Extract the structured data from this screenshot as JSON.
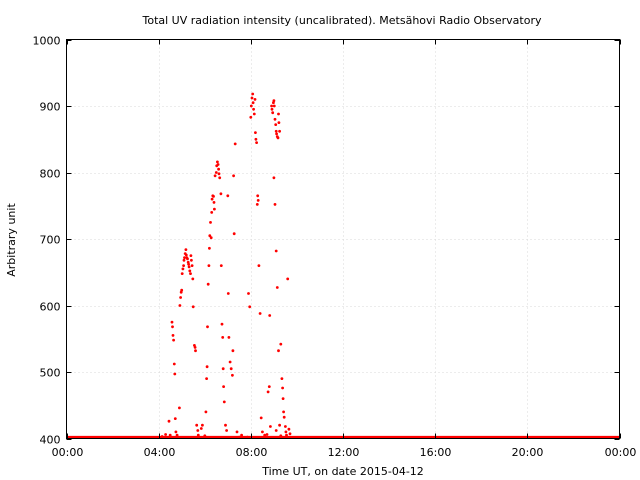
{
  "chart_data": {
    "type": "scatter",
    "title": "Total UV radiation intensity (uncalibrated). Metsähovi Radio Observatory",
    "xlabel": "Time UT, on date 2015-04-12",
    "ylabel": "Arbitrary unit",
    "xlim": [
      0,
      24
    ],
    "ylim": [
      400,
      1000
    ],
    "x_ticks": [
      {
        "value": 0,
        "label": "00:00"
      },
      {
        "value": 4,
        "label": "04:00"
      },
      {
        "value": 8,
        "label": "08:00"
      },
      {
        "value": 12,
        "label": "12:00"
      },
      {
        "value": 16,
        "label": "16:00"
      },
      {
        "value": 20,
        "label": "20:00"
      },
      {
        "value": 24,
        "label": "00:00"
      }
    ],
    "y_ticks": [
      {
        "value": 400,
        "label": "400"
      },
      {
        "value": 500,
        "label": "500"
      },
      {
        "value": 600,
        "label": "600"
      },
      {
        "value": 700,
        "label": "700"
      },
      {
        "value": 800,
        "label": "800"
      },
      {
        "value": 900,
        "label": "900"
      },
      {
        "value": 1000,
        "label": "1000"
      }
    ],
    "grid": true,
    "series": [
      {
        "color": "#ff0000",
        "baseline": {
          "y": 401,
          "x_start": 0,
          "x_end": 24
        },
        "points": [
          [
            4.15,
            403
          ],
          [
            4.3,
            406
          ],
          [
            4.45,
            426
          ],
          [
            4.5,
            405
          ],
          [
            4.58,
            575
          ],
          [
            4.6,
            568
          ],
          [
            4.62,
            555
          ],
          [
            4.65,
            548
          ],
          [
            4.68,
            512
          ],
          [
            4.7,
            497
          ],
          [
            4.72,
            430
          ],
          [
            4.75,
            410
          ],
          [
            4.8,
            405
          ],
          [
            4.9,
            446
          ],
          [
            4.92,
            600
          ],
          [
            4.95,
            612
          ],
          [
            4.98,
            620
          ],
          [
            5.0,
            623
          ],
          [
            5.02,
            648
          ],
          [
            5.05,
            655
          ],
          [
            5.08,
            660
          ],
          [
            5.1,
            668
          ],
          [
            5.12,
            672
          ],
          [
            5.15,
            678
          ],
          [
            5.18,
            684
          ],
          [
            5.2,
            676
          ],
          [
            5.22,
            672
          ],
          [
            5.25,
            670
          ],
          [
            5.28,
            665
          ],
          [
            5.3,
            662
          ],
          [
            5.32,
            658
          ],
          [
            5.35,
            652
          ],
          [
            5.38,
            648
          ],
          [
            5.4,
            675
          ],
          [
            5.42,
            668
          ],
          [
            5.45,
            660
          ],
          [
            5.48,
            640
          ],
          [
            5.5,
            598
          ],
          [
            5.55,
            540
          ],
          [
            5.58,
            537
          ],
          [
            5.6,
            532
          ],
          [
            5.65,
            420
          ],
          [
            5.7,
            412
          ],
          [
            5.72,
            405
          ],
          [
            5.75,
            402
          ],
          [
            5.85,
            415
          ],
          [
            5.9,
            420
          ],
          [
            6.0,
            404
          ],
          [
            6.05,
            440
          ],
          [
            6.08,
            490
          ],
          [
            6.1,
            508
          ],
          [
            6.12,
            568
          ],
          [
            6.15,
            632
          ],
          [
            6.18,
            660
          ],
          [
            6.2,
            686
          ],
          [
            6.22,
            705
          ],
          [
            6.25,
            725
          ],
          [
            6.28,
            702
          ],
          [
            6.3,
            740
          ],
          [
            6.32,
            760
          ],
          [
            6.35,
            765
          ],
          [
            6.38,
            764
          ],
          [
            6.4,
            755
          ],
          [
            6.42,
            745
          ],
          [
            6.45,
            795
          ],
          [
            6.5,
            800
          ],
          [
            6.52,
            810
          ],
          [
            6.55,
            816
          ],
          [
            6.58,
            812
          ],
          [
            6.6,
            805
          ],
          [
            6.62,
            798
          ],
          [
            6.65,
            792
          ],
          [
            6.7,
            768
          ],
          [
            6.72,
            660
          ],
          [
            6.75,
            572
          ],
          [
            6.78,
            552
          ],
          [
            6.8,
            505
          ],
          [
            6.82,
            478
          ],
          [
            6.85,
            455
          ],
          [
            6.9,
            420
          ],
          [
            6.95,
            412
          ],
          [
            7.0,
            765
          ],
          [
            7.02,
            618
          ],
          [
            7.05,
            552
          ],
          [
            7.1,
            515
          ],
          [
            7.15,
            505
          ],
          [
            7.2,
            495
          ],
          [
            7.22,
            532
          ],
          [
            7.25,
            795
          ],
          [
            7.28,
            708
          ],
          [
            7.32,
            843
          ],
          [
            7.4,
            410
          ],
          [
            7.5,
            402
          ],
          [
            7.6,
            405
          ],
          [
            7.85,
            402
          ],
          [
            7.9,
            618
          ],
          [
            7.95,
            598
          ],
          [
            8.0,
            883
          ],
          [
            8.02,
            900
          ],
          [
            8.05,
            912
          ],
          [
            8.08,
            918
          ],
          [
            8.1,
            905
          ],
          [
            8.12,
            895
          ],
          [
            8.15,
            888
          ],
          [
            8.18,
            910
          ],
          [
            8.2,
            860
          ],
          [
            8.22,
            850
          ],
          [
            8.25,
            845
          ],
          [
            8.28,
            752
          ],
          [
            8.3,
            765
          ],
          [
            8.32,
            758
          ],
          [
            8.35,
            660
          ],
          [
            8.4,
            588
          ],
          [
            8.45,
            431
          ],
          [
            8.5,
            410
          ],
          [
            8.6,
            405
          ],
          [
            8.7,
            406
          ],
          [
            8.75,
            470
          ],
          [
            8.8,
            478
          ],
          [
            8.82,
            585
          ],
          [
            8.85,
            418
          ],
          [
            8.9,
            900
          ],
          [
            8.92,
            895
          ],
          [
            8.95,
            890
          ],
          [
            8.98,
            905
          ],
          [
            9.0,
            908
          ],
          [
            9.02,
            900
          ],
          [
            9.05,
            880
          ],
          [
            9.08,
            872
          ],
          [
            9.1,
            862
          ],
          [
            9.12,
            858
          ],
          [
            9.15,
            854
          ],
          [
            9.18,
            852
          ],
          [
            9.2,
            888
          ],
          [
            9.22,
            875
          ],
          [
            9.25,
            862
          ],
          [
            9.0,
            792
          ],
          [
            9.05,
            752
          ],
          [
            9.1,
            682
          ],
          [
            9.15,
            627
          ],
          [
            9.2,
            532
          ],
          [
            9.3,
            542
          ],
          [
            9.35,
            490
          ],
          [
            9.38,
            476
          ],
          [
            9.4,
            460
          ],
          [
            9.42,
            440
          ],
          [
            9.45,
            432
          ],
          [
            9.5,
            418
          ],
          [
            9.52,
            410
          ],
          [
            9.55,
            405
          ],
          [
            9.6,
            640
          ],
          [
            9.65,
            414
          ],
          [
            9.7,
            407
          ],
          [
            8.6,
            402
          ],
          [
            9.3,
            404
          ],
          [
            9.1,
            412
          ],
          [
            9.25,
            420
          ]
        ]
      }
    ]
  }
}
